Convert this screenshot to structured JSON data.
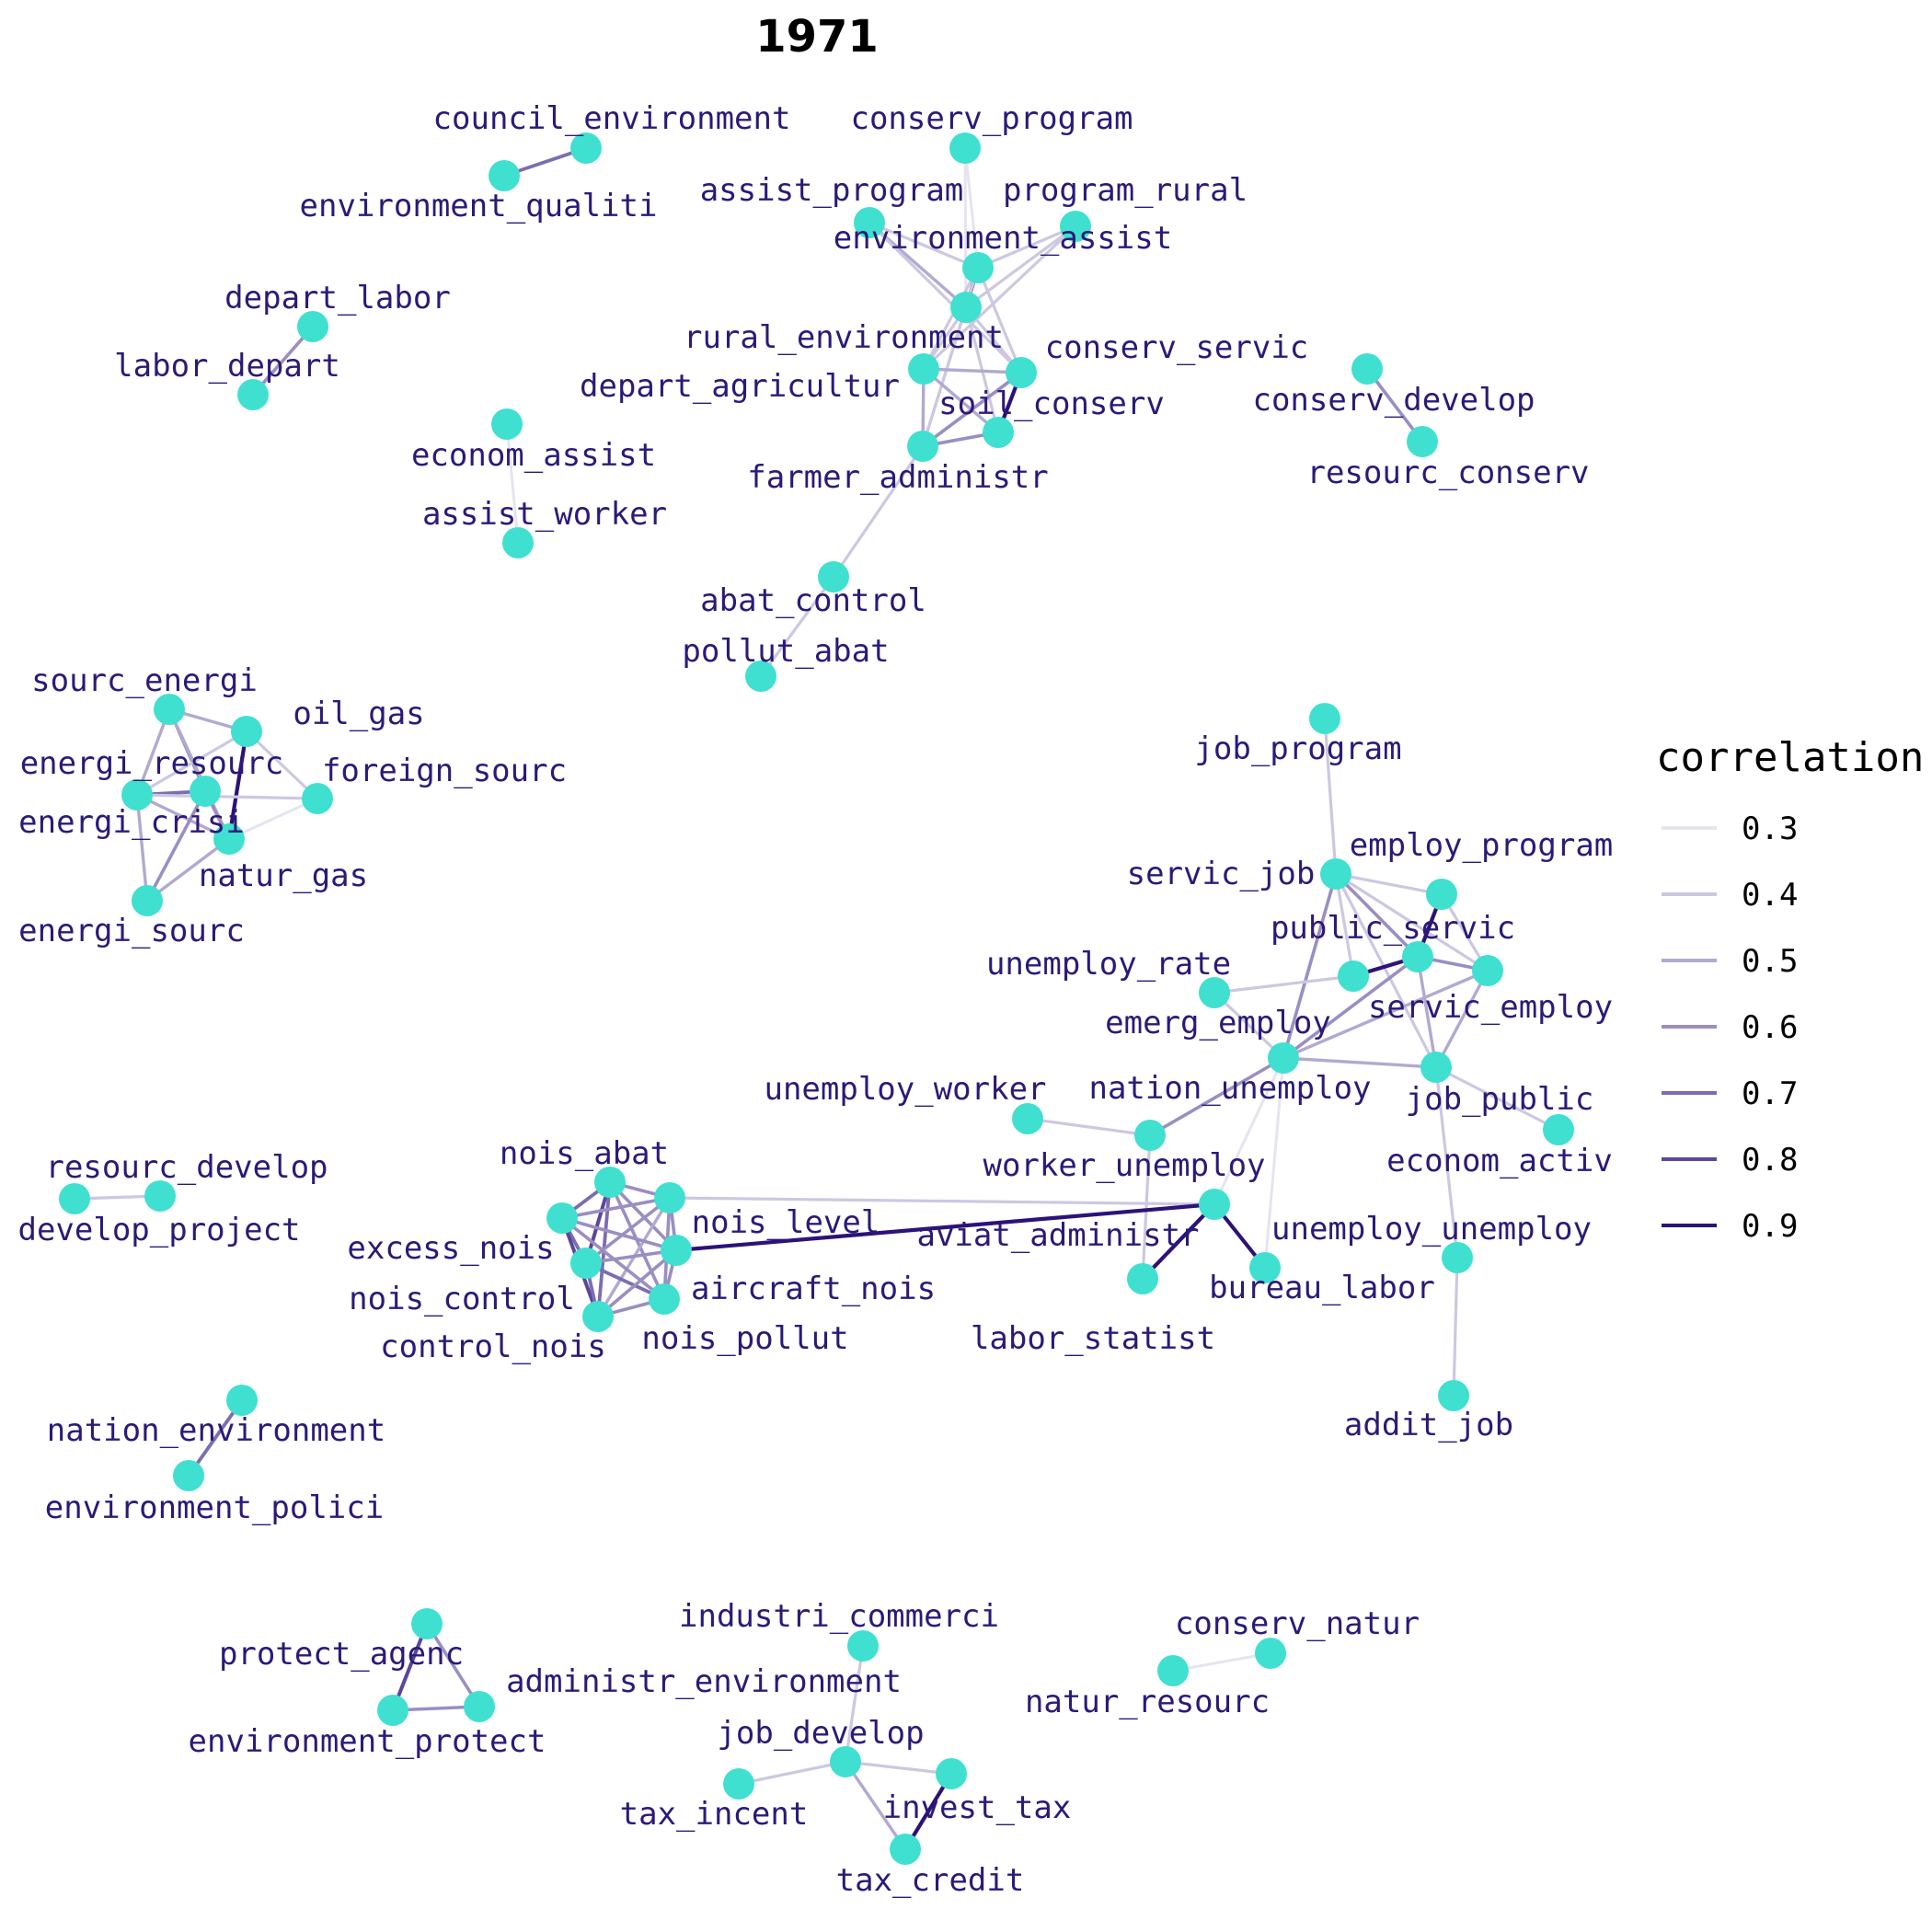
{
  "title": "1971",
  "colors": {
    "node": "#40e0d0",
    "label": "#2b1a78",
    "edge_low": "#e4e2ef",
    "edge_high": "#2d1278"
  },
  "legend": {
    "title": "correlation",
    "values": [
      "0.3",
      "0.4",
      "0.5",
      "0.6",
      "0.7",
      "0.8",
      "0.9"
    ],
    "colors": [
      "#e6e4ef",
      "#cdc8e0",
      "#b2a9d1",
      "#9a8ec3",
      "#7c6db1",
      "#5a479c",
      "#2d1278"
    ]
  },
  "nodes": [
    {
      "id": "council_environment",
      "label": "council_environment"
    },
    {
      "id": "environment_qualiti",
      "label": "environment_qualiti"
    },
    {
      "id": "depart_labor",
      "label": "depart_labor"
    },
    {
      "id": "labor_depart",
      "label": "labor_depart"
    },
    {
      "id": "econom_assist",
      "label": "econom_assist"
    },
    {
      "id": "assist_worker",
      "label": "assist_worker"
    },
    {
      "id": "conserv_program",
      "label": "conserv_program"
    },
    {
      "id": "assist_program",
      "label": "assist_program"
    },
    {
      "id": "program_rural",
      "label": "program_rural"
    },
    {
      "id": "environment_assist",
      "label": "environment_assist"
    },
    {
      "id": "rural_environment",
      "label": "rural_environment"
    },
    {
      "id": "depart_agricultur",
      "label": "depart_agricultur"
    },
    {
      "id": "conserv_servic",
      "label": "conserv_servic"
    },
    {
      "id": "soil_conserv",
      "label": "soil_conserv"
    },
    {
      "id": "farmer_administr",
      "label": "farmer_administr"
    },
    {
      "id": "abat_control",
      "label": "abat_control"
    },
    {
      "id": "pollut_abat",
      "label": "pollut_abat"
    },
    {
      "id": "conserv_develop",
      "label": "conserv_develop"
    },
    {
      "id": "resourc_conserv",
      "label": "resourc_conserv"
    },
    {
      "id": "sourc_energi",
      "label": "sourc_energi"
    },
    {
      "id": "oil_gas",
      "label": "oil_gas"
    },
    {
      "id": "energi_resourc",
      "label": "energi_resourc"
    },
    {
      "id": "foreign_sourc",
      "label": "foreign_sourc"
    },
    {
      "id": "energi_crisi",
      "label": "energi_crisi"
    },
    {
      "id": "natur_gas",
      "label": "natur_gas"
    },
    {
      "id": "energi_sourc",
      "label": "energi_sourc"
    },
    {
      "id": "job_program",
      "label": "job_program"
    },
    {
      "id": "servic_job",
      "label": "servic_job"
    },
    {
      "id": "employ_program",
      "label": "employ_program"
    },
    {
      "id": "public_servic",
      "label": "public_servic"
    },
    {
      "id": "unemploy_rate",
      "label": "unemploy_rate"
    },
    {
      "id": "servic_employ",
      "label": "servic_employ"
    },
    {
      "id": "emerg_employ",
      "label": "emerg_employ"
    },
    {
      "id": "nation_unemploy",
      "label": "nation_unemploy"
    },
    {
      "id": "unemploy_worker",
      "label": "unemploy_worker"
    },
    {
      "id": "job_public",
      "label": "job_public"
    },
    {
      "id": "econom_activ",
      "label": "econom_activ"
    },
    {
      "id": "worker_unemploy",
      "label": "worker_unemploy"
    },
    {
      "id": "aviat_administr",
      "label": "aviat_administr"
    },
    {
      "id": "unemploy_unemploy",
      "label": "unemploy_unemploy"
    },
    {
      "id": "bureau_labor",
      "label": "bureau_labor"
    },
    {
      "id": "labor_statist",
      "label": "labor_statist"
    },
    {
      "id": "addit_job",
      "label": "addit_job"
    },
    {
      "id": "resourc_develop",
      "label": "resourc_develop"
    },
    {
      "id": "develop_project",
      "label": "develop_project"
    },
    {
      "id": "nois_abat",
      "label": "nois_abat"
    },
    {
      "id": "nois_level",
      "label": "nois_level"
    },
    {
      "id": "excess_nois",
      "label": "excess_nois"
    },
    {
      "id": "nois_control",
      "label": "nois_control"
    },
    {
      "id": "aircraft_nois",
      "label": "aircraft_nois"
    },
    {
      "id": "control_nois",
      "label": "control_nois"
    },
    {
      "id": "nois_pollut",
      "label": "nois_pollut"
    },
    {
      "id": "nation_environment",
      "label": "nation_environment"
    },
    {
      "id": "environment_polici",
      "label": "environment_polici"
    },
    {
      "id": "protect_agenc",
      "label": "protect_agenc"
    },
    {
      "id": "administr_environment",
      "label": "administr_environment"
    },
    {
      "id": "environment_protect",
      "label": "environment_protect"
    },
    {
      "id": "industri_commerci",
      "label": "industri_commerci"
    },
    {
      "id": "conserv_natur",
      "label": "conserv_natur"
    },
    {
      "id": "natur_resourc",
      "label": "natur_resourc"
    },
    {
      "id": "job_develop",
      "label": "job_develop"
    },
    {
      "id": "tax_incent",
      "label": "tax_incent"
    },
    {
      "id": "invest_tax",
      "label": "invest_tax"
    },
    {
      "id": "tax_credit",
      "label": "tax_credit"
    }
  ],
  "edges": [
    {
      "source": "council_environment",
      "target": "environment_qualiti",
      "correlation": 0.7
    },
    {
      "source": "depart_labor",
      "target": "labor_depart",
      "correlation": 0.6
    },
    {
      "source": "econom_assist",
      "target": "assist_worker",
      "correlation": 0.3
    },
    {
      "source": "conserv_program",
      "target": "environment_assist",
      "correlation": 0.3
    },
    {
      "source": "conserv_program",
      "target": "rural_environment",
      "correlation": 0.3
    },
    {
      "source": "assist_program",
      "target": "environment_assist",
      "correlation": 0.4
    },
    {
      "source": "assist_program",
      "target": "rural_environment",
      "correlation": 0.5
    },
    {
      "source": "assist_program",
      "target": "conserv_servic",
      "correlation": 0.4
    },
    {
      "source": "program_rural",
      "target": "environment_assist",
      "correlation": 0.4
    },
    {
      "source": "program_rural",
      "target": "rural_environment",
      "correlation": 0.4
    },
    {
      "source": "program_rural",
      "target": "depart_agricultur",
      "correlation": 0.4
    },
    {
      "source": "environment_assist",
      "target": "rural_environment",
      "correlation": 0.8
    },
    {
      "source": "environment_assist",
      "target": "depart_agricultur",
      "correlation": 0.4
    },
    {
      "source": "environment_assist",
      "target": "conserv_servic",
      "correlation": 0.4
    },
    {
      "source": "environment_assist",
      "target": "farmer_administr",
      "correlation": 0.4
    },
    {
      "source": "rural_environment",
      "target": "depart_agricultur",
      "correlation": 0.4
    },
    {
      "source": "rural_environment",
      "target": "conserv_servic",
      "correlation": 0.4
    },
    {
      "source": "rural_environment",
      "target": "soil_conserv",
      "correlation": 0.4
    },
    {
      "source": "rural_environment",
      "target": "farmer_administr",
      "correlation": 0.4
    },
    {
      "source": "depart_agricultur",
      "target": "conserv_servic",
      "correlation": 0.5
    },
    {
      "source": "depart_agricultur",
      "target": "soil_conserv",
      "correlation": 0.5
    },
    {
      "source": "depart_agricultur",
      "target": "farmer_administr",
      "correlation": 0.5
    },
    {
      "source": "conserv_servic",
      "target": "soil_conserv",
      "correlation": 0.9
    },
    {
      "source": "conserv_servic",
      "target": "farmer_administr",
      "correlation": 0.6
    },
    {
      "source": "soil_conserv",
      "target": "farmer_administr",
      "correlation": 0.6
    },
    {
      "source": "farmer_administr",
      "target": "abat_control",
      "correlation": 0.4
    },
    {
      "source": "abat_control",
      "target": "pollut_abat",
      "correlation": 0.4
    },
    {
      "source": "conserv_develop",
      "target": "resourc_conserv",
      "correlation": 0.6
    },
    {
      "source": "sourc_energi",
      "target": "oil_gas",
      "correlation": 0.5
    },
    {
      "source": "sourc_energi",
      "target": "energi_resourc",
      "correlation": 0.5
    },
    {
      "source": "sourc_energi",
      "target": "energi_crisi",
      "correlation": 0.6
    },
    {
      "source": "sourc_energi",
      "target": "natur_gas",
      "correlation": 0.5
    },
    {
      "source": "oil_gas",
      "target": "natur_gas",
      "correlation": 0.9
    },
    {
      "source": "oil_gas",
      "target": "energi_resourc",
      "correlation": 0.4
    },
    {
      "source": "oil_gas",
      "target": "foreign_sourc",
      "correlation": 0.4
    },
    {
      "source": "energi_resourc",
      "target": "energi_crisi",
      "correlation": 0.7
    },
    {
      "source": "energi_resourc",
      "target": "natur_gas",
      "correlation": 0.5
    },
    {
      "source": "energi_resourc",
      "target": "energi_sourc",
      "correlation": 0.5
    },
    {
      "source": "energi_resourc",
      "target": "foreign_sourc",
      "correlation": 0.4
    },
    {
      "source": "energi_crisi",
      "target": "natur_gas",
      "correlation": 0.6
    },
    {
      "source": "energi_crisi",
      "target": "energi_sourc",
      "correlation": 0.6
    },
    {
      "source": "natur_gas",
      "target": "foreign_sourc",
      "correlation": 0.3
    },
    {
      "source": "natur_gas",
      "target": "energi_sourc",
      "correlation": 0.5
    },
    {
      "source": "job_program",
      "target": "servic_job",
      "correlation": 0.4
    },
    {
      "source": "servic_job",
      "target": "employ_program",
      "correlation": 0.4
    },
    {
      "source": "servic_job",
      "target": "public_servic",
      "correlation": 0.6
    },
    {
      "source": "servic_job",
      "target": "servic_employ",
      "correlation": 0.4
    },
    {
      "source": "servic_job",
      "target": "nation_unemploy",
      "correlation": 0.6
    },
    {
      "source": "servic_job",
      "target": "job_public",
      "correlation": 0.4
    },
    {
      "source": "servic_job",
      "target": "emerg_employ",
      "correlation": 0.4
    },
    {
      "source": "employ_program",
      "target": "public_servic",
      "correlation": 0.9
    },
    {
      "source": "employ_program",
      "target": "servic_employ",
      "correlation": 0.4
    },
    {
      "source": "public_servic",
      "target": "servic_employ",
      "correlation": 0.6
    },
    {
      "source": "public_servic",
      "target": "nation_unemploy",
      "correlation": 0.6
    },
    {
      "source": "public_servic",
      "target": "emerg_employ",
      "correlation": 0.9
    },
    {
      "source": "public_servic",
      "target": "job_public",
      "correlation": 0.5
    },
    {
      "source": "unemploy_rate",
      "target": "nation_unemploy",
      "correlation": 0.4
    },
    {
      "source": "unemploy_rate",
      "target": "emerg_employ",
      "correlation": 0.4
    },
    {
      "source": "servic_employ",
      "target": "job_public",
      "correlation": 0.5
    },
    {
      "source": "servic_employ",
      "target": "nation_unemploy",
      "correlation": 0.5
    },
    {
      "source": "nation_unemploy",
      "target": "job_public",
      "correlation": 0.5
    },
    {
      "source": "nation_unemploy",
      "target": "worker_unemploy",
      "correlation": 0.6
    },
    {
      "source": "nation_unemploy",
      "target": "aviat_administr",
      "correlation": 0.3
    },
    {
      "source": "nation_unemploy",
      "target": "bureau_labor",
      "correlation": 0.3
    },
    {
      "source": "unemploy_worker",
      "target": "worker_unemploy",
      "correlation": 0.4
    },
    {
      "source": "job_public",
      "target": "econom_activ",
      "correlation": 0.4
    },
    {
      "source": "job_public",
      "target": "unemploy_unemploy",
      "correlation": 0.4
    },
    {
      "source": "worker_unemploy",
      "target": "labor_statist",
      "correlation": 0.4
    },
    {
      "source": "aviat_administr",
      "target": "bureau_labor",
      "correlation": 0.9
    },
    {
      "source": "aviat_administr",
      "target": "labor_statist",
      "correlation": 0.9
    },
    {
      "source": "unemploy_unemploy",
      "target": "addit_job",
      "correlation": 0.4
    },
    {
      "source": "resourc_develop",
      "target": "develop_project",
      "correlation": 0.4
    },
    {
      "source": "nois_abat",
      "target": "nois_level",
      "correlation": 0.6
    },
    {
      "source": "nois_abat",
      "target": "excess_nois",
      "correlation": 0.7
    },
    {
      "source": "nois_abat",
      "target": "nois_control",
      "correlation": 0.8
    },
    {
      "source": "nois_abat",
      "target": "aircraft_nois",
      "correlation": 0.6
    },
    {
      "source": "nois_abat",
      "target": "control_nois",
      "correlation": 0.7
    },
    {
      "source": "nois_abat",
      "target": "nois_pollut",
      "correlation": 0.6
    },
    {
      "source": "nois_level",
      "target": "excess_nois",
      "correlation": 0.6
    },
    {
      "source": "nois_level",
      "target": "nois_control",
      "correlation": 0.6
    },
    {
      "source": "nois_level",
      "target": "aircraft_nois",
      "correlation": 0.6
    },
    {
      "source": "nois_level",
      "target": "control_nois",
      "correlation": 0.5
    },
    {
      "source": "nois_level",
      "target": "nois_pollut",
      "correlation": 0.6
    },
    {
      "source": "nois_level",
      "target": "aviat_administr",
      "correlation": 0.4
    },
    {
      "source": "excess_nois",
      "target": "nois_control",
      "correlation": 0.7
    },
    {
      "source": "excess_nois",
      "target": "aircraft_nois",
      "correlation": 0.6
    },
    {
      "source": "excess_nois",
      "target": "control_nois",
      "correlation": 0.8
    },
    {
      "source": "excess_nois",
      "target": "nois_pollut",
      "correlation": 0.6
    },
    {
      "source": "nois_control",
      "target": "aircraft_nois",
      "correlation": 0.6
    },
    {
      "source": "nois_control",
      "target": "control_nois",
      "correlation": 0.7
    },
    {
      "source": "nois_control",
      "target": "nois_pollut",
      "correlation": 0.7
    },
    {
      "source": "aircraft_nois",
      "target": "control_nois",
      "correlation": 0.6
    },
    {
      "source": "aircraft_nois",
      "target": "nois_pollut",
      "correlation": 0.6
    },
    {
      "source": "aircraft_nois",
      "target": "aviat_administr",
      "correlation": 0.9
    },
    {
      "source": "control_nois",
      "target": "nois_pollut",
      "correlation": 0.6
    },
    {
      "source": "nation_environment",
      "target": "environment_polici",
      "correlation": 0.7
    },
    {
      "source": "protect_agenc",
      "target": "environment_protect",
      "correlation": 0.8
    },
    {
      "source": "protect_agenc",
      "target": "administr_environment",
      "correlation": 0.6
    },
    {
      "source": "environment_protect",
      "target": "administr_environment",
      "correlation": 0.6
    },
    {
      "source": "industri_commerci",
      "target": "job_develop",
      "correlation": 0.4
    },
    {
      "source": "conserv_natur",
      "target": "natur_resourc",
      "correlation": 0.3
    },
    {
      "source": "job_develop",
      "target": "tax_incent",
      "correlation": 0.4
    },
    {
      "source": "job_develop",
      "target": "invest_tax",
      "correlation": 0.4
    },
    {
      "source": "job_develop",
      "target": "tax_credit",
      "correlation": 0.5
    },
    {
      "source": "invest_tax",
      "target": "tax_credit",
      "correlation": 0.9
    }
  ]
}
